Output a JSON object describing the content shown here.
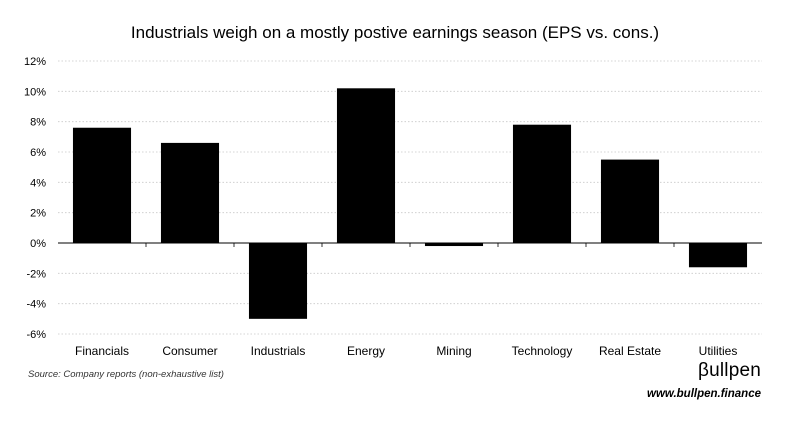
{
  "chart_data": {
    "type": "bar",
    "title": "Industrials weigh on a mostly postive earnings season (EPS vs. cons.)",
    "categories": [
      "Financials",
      "Consumer",
      "Industrials",
      "Energy",
      "Mining",
      "Technology",
      "Real Estate",
      "Utilities"
    ],
    "values": [
      7.6,
      6.6,
      -5.0,
      10.2,
      -0.2,
      7.8,
      5.5,
      -1.6
    ],
    "unit": "%",
    "ylim": [
      -6,
      12
    ],
    "yticks": [
      12,
      10,
      8,
      6,
      4,
      2,
      0,
      -2,
      -4,
      -6
    ],
    "ytick_labels": [
      "12%",
      "10%",
      "8%",
      "6%",
      "4%",
      "2%",
      "0%",
      "-2%",
      "-4%",
      "-6%"
    ],
    "grid": "horizontal dotted",
    "legend": "none",
    "bar_color": "#000000",
    "grid_color": "#c8c8c8"
  },
  "footer": {
    "source": "Source: Company reports (non-exhaustive list)",
    "brand": "βullpen",
    "url": "www.bullpen.finance"
  }
}
